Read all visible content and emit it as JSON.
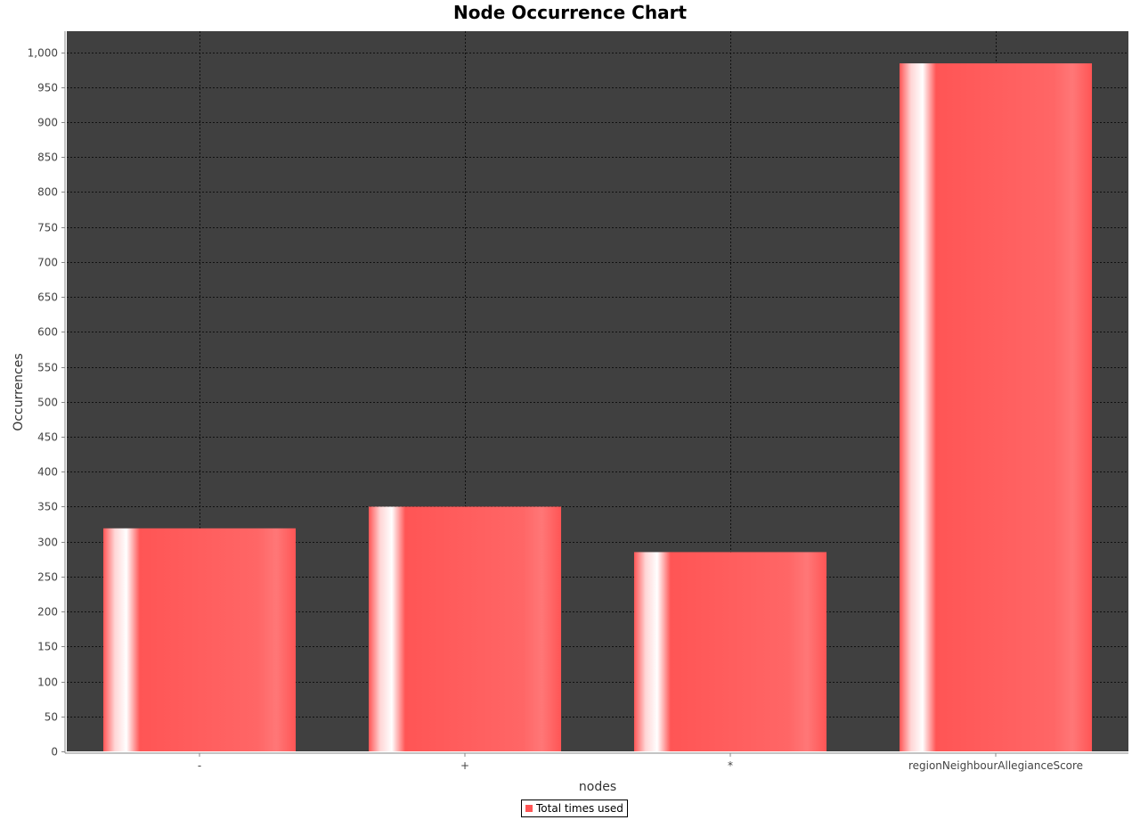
{
  "chart_data": {
    "type": "bar",
    "title": "Node Occurrence Chart",
    "xlabel": "nodes",
    "ylabel": "Occurrences",
    "categories": [
      "-",
      "+",
      "*",
      "regionNeighbourAllegianceScore"
    ],
    "series": [
      {
        "name": "Total times used",
        "values": [
          319,
          350,
          285,
          984
        ]
      }
    ],
    "ylim": [
      0,
      1030
    ],
    "yticks": [
      0,
      50,
      100,
      150,
      200,
      250,
      300,
      350,
      400,
      450,
      500,
      550,
      600,
      650,
      700,
      750,
      800,
      850,
      900,
      950,
      1000
    ],
    "ytick_labels": [
      "0",
      "50",
      "100",
      "150",
      "200",
      "250",
      "300",
      "350",
      "400",
      "450",
      "500",
      "550",
      "600",
      "650",
      "700",
      "750",
      "800",
      "850",
      "900",
      "950",
      "1,000"
    ],
    "grid": true,
    "legend_position": "bottom",
    "colors": {
      "plot_background": "#404040",
      "bar": "#ff5555",
      "grid": "#111111"
    }
  }
}
